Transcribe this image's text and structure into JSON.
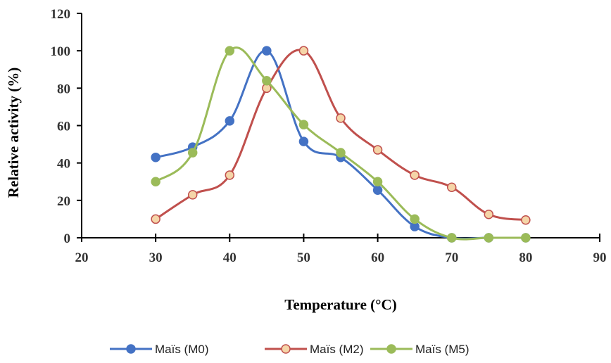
{
  "chart_data": {
    "type": "line",
    "title": "",
    "xlabel": "Temperature  (°C)",
    "ylabel": "Relative activity  (%)",
    "xlim": [
      20,
      90
    ],
    "ylim": [
      0,
      120
    ],
    "x_ticks": [
      "20",
      "30",
      "40",
      "50",
      "60",
      "70",
      "80",
      "90"
    ],
    "y_ticks": [
      "0",
      "20",
      "40",
      "60",
      "80",
      "100",
      "120"
    ],
    "grid": false,
    "legend_position": "bottom",
    "smooth": true,
    "series": [
      {
        "name": "Maïs (M0)",
        "color": "#4472C4",
        "marker_fill": "#4472C4",
        "x": [
          30,
          35,
          40,
          45,
          50,
          55,
          60,
          65,
          70,
          75,
          80
        ],
        "y": [
          43,
          48.5,
          62.5,
          100,
          51.5,
          43,
          25.5,
          6,
          0,
          0,
          0
        ]
      },
      {
        "name": "Maïs (M2)",
        "color": "#C0504D",
        "marker_fill": "#F5D5A8",
        "x": [
          30,
          35,
          40,
          45,
          50,
          55,
          60,
          65,
          70,
          75,
          80
        ],
        "y": [
          10,
          23,
          33.5,
          80,
          100,
          64,
          47,
          33.5,
          27,
          12.5,
          9.5
        ]
      },
      {
        "name": "Maïs (M5)",
        "color": "#9BBB59",
        "marker_fill": "#9BBB59",
        "x": [
          30,
          35,
          40,
          45,
          50,
          55,
          60,
          65,
          70,
          75,
          80
        ],
        "y": [
          30,
          45.5,
          100,
          84,
          60.5,
          45.5,
          30,
          10,
          0,
          0,
          0
        ]
      }
    ]
  }
}
